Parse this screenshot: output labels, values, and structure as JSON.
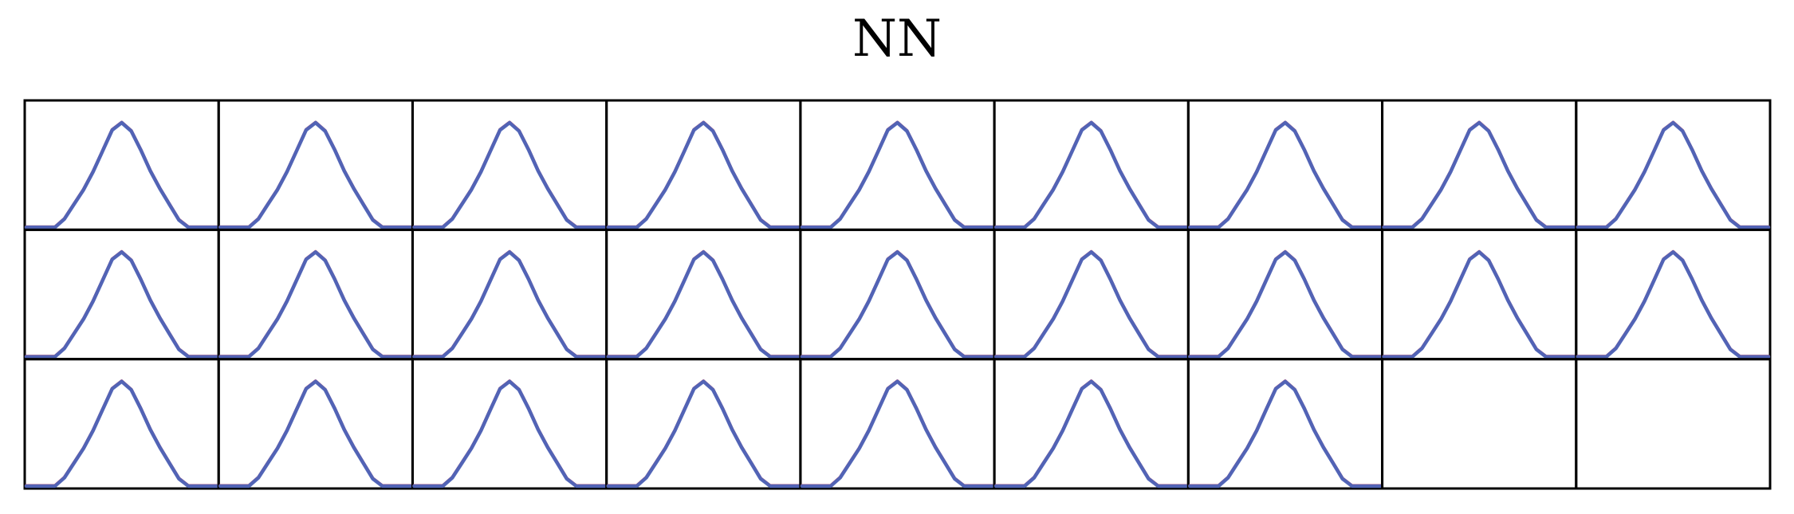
{
  "chart_data": {
    "type": "line",
    "title": "NN",
    "layout": {
      "rows": 3,
      "cols": 9,
      "panel_count": 25
    },
    "x_range": [
      0,
      1
    ],
    "y_range": [
      0,
      1
    ],
    "axis_ticks": false,
    "grid": false,
    "series": [
      {
        "color": "#d9596a"
      },
      {
        "color": "#4a63b8"
      }
    ],
    "curve_profile": {
      "x": [
        0.0,
        0.05,
        0.1,
        0.15,
        0.2,
        0.25,
        0.3,
        0.35,
        0.4,
        0.45,
        0.5,
        0.55,
        0.6,
        0.65,
        0.7,
        0.75,
        0.8,
        0.85,
        0.9,
        0.95,
        1.0
      ],
      "y": [
        0.0,
        0.0,
        0.0,
        0.0,
        0.08,
        0.22,
        0.36,
        0.53,
        0.73,
        0.93,
        1.0,
        0.92,
        0.74,
        0.54,
        0.37,
        0.22,
        0.07,
        0.0,
        0.0,
        0.0,
        0.0
      ]
    }
  }
}
